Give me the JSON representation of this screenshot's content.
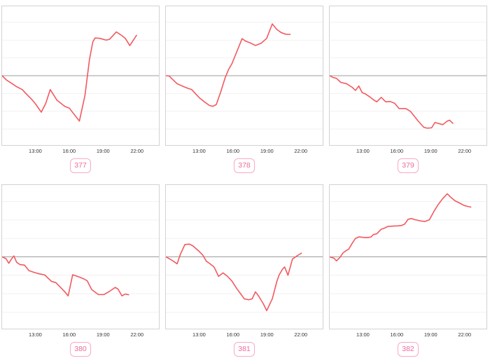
{
  "theme": {
    "line_color": "#f2595f",
    "baseline_color": "#9c9c9c",
    "grid_color": "#f1f1f1",
    "panel_border_color": "#d2d2d2",
    "tick_color": "#333333",
    "badge_text_color": "#ef6a9e",
    "badge_border_color": "#f8aac7",
    "background": "#ffffff"
  },
  "axis": {
    "x_domain_hours": [
      10,
      24
    ],
    "y_domain_units": [
      -3.9,
      3.9
    ],
    "gridline_units": [
      -3,
      -2,
      -1,
      1,
      2,
      3
    ],
    "baseline_unit": 0,
    "grid": "on",
    "legend": "none",
    "ticks": [
      {
        "hour": 13,
        "label": "13:00"
      },
      {
        "hour": 16,
        "label": "16:00"
      },
      {
        "hour": 19,
        "label": "19:00"
      },
      {
        "hour": 22,
        "label": "22:00"
      }
    ]
  },
  "chart_data": [
    {
      "type": "line",
      "label": "377",
      "title": "",
      "xlabel": "",
      "ylabel": "",
      "x_unit": "hour of day",
      "y_unit": "change relative to baseline (unlabeled axis); 1 unit = one gridline spacing",
      "series": [
        {
          "name": "series-377",
          "points": [
            [
              10.0,
              0
            ],
            [
              10.4,
              -0.25
            ],
            [
              10.9,
              -0.45
            ],
            [
              11.3,
              -0.62
            ],
            [
              11.8,
              -0.78
            ],
            [
              12.2,
              -1.05
            ],
            [
              12.6,
              -1.3
            ],
            [
              13.0,
              -1.6
            ],
            [
              13.5,
              -2.05
            ],
            [
              13.9,
              -1.55
            ],
            [
              14.3,
              -0.78
            ],
            [
              14.9,
              -1.38
            ],
            [
              15.6,
              -1.73
            ],
            [
              16.0,
              -1.82
            ],
            [
              16.4,
              -2.15
            ],
            [
              16.9,
              -2.55
            ],
            [
              17.4,
              -1.1
            ],
            [
              17.8,
              0.9
            ],
            [
              18.1,
              1.9
            ],
            [
              18.3,
              2.12
            ],
            [
              18.7,
              2.1
            ],
            [
              19.3,
              2.0
            ],
            [
              19.6,
              2.05
            ],
            [
              20.2,
              2.46
            ],
            [
              20.7,
              2.25
            ],
            [
              21.0,
              2.1
            ],
            [
              21.4,
              1.69
            ],
            [
              22.0,
              2.27
            ]
          ]
        }
      ]
    },
    {
      "type": "line",
      "label": "378",
      "title": "",
      "xlabel": "",
      "ylabel": "",
      "x_unit": "hour of day",
      "y_unit": "change relative to baseline (unlabeled axis); 1 unit = one gridline spacing",
      "series": [
        {
          "name": "series-378",
          "points": [
            [
              10.0,
              0
            ],
            [
              10.3,
              -0.02
            ],
            [
              10.5,
              -0.15
            ],
            [
              11.0,
              -0.45
            ],
            [
              11.6,
              -0.62
            ],
            [
              12.0,
              -0.72
            ],
            [
              12.3,
              -0.78
            ],
            [
              12.7,
              -1.05
            ],
            [
              13.0,
              -1.25
            ],
            [
              13.5,
              -1.5
            ],
            [
              13.9,
              -1.68
            ],
            [
              14.2,
              -1.72
            ],
            [
              14.5,
              -1.62
            ],
            [
              14.9,
              -0.9
            ],
            [
              15.3,
              -0.1
            ],
            [
              15.6,
              0.35
            ],
            [
              15.9,
              0.68
            ],
            [
              16.3,
              1.3
            ],
            [
              16.8,
              2.08
            ],
            [
              17.1,
              1.95
            ],
            [
              17.5,
              1.85
            ],
            [
              18.0,
              1.7
            ],
            [
              18.5,
              1.82
            ],
            [
              19.0,
              2.1
            ],
            [
              19.5,
              2.91
            ],
            [
              19.9,
              2.6
            ],
            [
              20.3,
              2.42
            ],
            [
              20.7,
              2.33
            ],
            [
              21.1,
              2.32
            ]
          ]
        }
      ]
    },
    {
      "type": "line",
      "label": "379",
      "title": "",
      "xlabel": "",
      "ylabel": "",
      "x_unit": "hour of day",
      "y_unit": "change relative to baseline (unlabeled axis); 1 unit = one gridline spacing",
      "series": [
        {
          "name": "series-379",
          "points": [
            [
              10.0,
              0
            ],
            [
              10.3,
              -0.1
            ],
            [
              10.6,
              -0.15
            ],
            [
              11.0,
              -0.38
            ],
            [
              11.5,
              -0.45
            ],
            [
              12.0,
              -0.65
            ],
            [
              12.3,
              -0.83
            ],
            [
              12.6,
              -0.58
            ],
            [
              12.9,
              -0.95
            ],
            [
              13.2,
              -1.03
            ],
            [
              13.6,
              -1.2
            ],
            [
              13.9,
              -1.35
            ],
            [
              14.2,
              -1.47
            ],
            [
              14.6,
              -1.22
            ],
            [
              15.0,
              -1.47
            ],
            [
              15.4,
              -1.45
            ],
            [
              15.8,
              -1.55
            ],
            [
              16.2,
              -1.85
            ],
            [
              16.8,
              -1.85
            ],
            [
              17.2,
              -2.0
            ],
            [
              17.9,
              -2.55
            ],
            [
              18.4,
              -2.9
            ],
            [
              18.7,
              -2.95
            ],
            [
              19.1,
              -2.93
            ],
            [
              19.4,
              -2.63
            ],
            [
              19.8,
              -2.7
            ],
            [
              20.1,
              -2.75
            ],
            [
              20.5,
              -2.55
            ],
            [
              20.7,
              -2.5
            ],
            [
              21.0,
              -2.68
            ]
          ]
        }
      ]
    },
    {
      "type": "line",
      "label": "380",
      "title": "",
      "xlabel": "",
      "ylabel": "",
      "x_unit": "hour of day",
      "y_unit": "change relative to baseline (unlabeled axis); 1 unit = one gridline spacing",
      "series": [
        {
          "name": "series-380",
          "points": [
            [
              10.0,
              0
            ],
            [
              10.35,
              -0.1
            ],
            [
              10.6,
              -0.35
            ],
            [
              10.8,
              -0.15
            ],
            [
              11.05,
              0.05
            ],
            [
              11.3,
              -0.3
            ],
            [
              11.6,
              -0.42
            ],
            [
              12.0,
              -0.45
            ],
            [
              12.4,
              -0.75
            ],
            [
              12.9,
              -0.85
            ],
            [
              13.3,
              -0.92
            ],
            [
              13.8,
              -0.98
            ],
            [
              14.4,
              -1.33
            ],
            [
              14.8,
              -1.4
            ],
            [
              15.2,
              -1.65
            ],
            [
              15.6,
              -1.9
            ],
            [
              15.9,
              -2.12
            ],
            [
              16.3,
              -0.97
            ],
            [
              16.9,
              -1.1
            ],
            [
              17.3,
              -1.2
            ],
            [
              17.6,
              -1.3
            ],
            [
              18.0,
              -1.78
            ],
            [
              18.6,
              -2.05
            ],
            [
              19.1,
              -2.05
            ],
            [
              19.6,
              -1.87
            ],
            [
              20.1,
              -1.66
            ],
            [
              20.35,
              -1.75
            ],
            [
              20.7,
              -2.12
            ],
            [
              21.0,
              -2.02
            ],
            [
              21.3,
              -2.06
            ]
          ]
        }
      ]
    },
    {
      "type": "line",
      "label": "381",
      "title": "",
      "xlabel": "",
      "ylabel": "",
      "x_unit": "hour of day",
      "y_unit": "change relative to baseline (unlabeled axis); 1 unit = one gridline spacing",
      "series": [
        {
          "name": "series-381",
          "points": [
            [
              10.0,
              0
            ],
            [
              10.3,
              -0.1
            ],
            [
              10.7,
              -0.25
            ],
            [
              11.0,
              -0.38
            ],
            [
              11.3,
              0.15
            ],
            [
              11.7,
              0.67
            ],
            [
              12.1,
              0.69
            ],
            [
              12.4,
              0.6
            ],
            [
              13.0,
              0.28
            ],
            [
              13.3,
              0.09
            ],
            [
              13.6,
              -0.23
            ],
            [
              13.9,
              -0.36
            ],
            [
              14.3,
              -0.55
            ],
            [
              14.7,
              -1.06
            ],
            [
              15.1,
              -0.87
            ],
            [
              15.5,
              -1.06
            ],
            [
              15.9,
              -1.32
            ],
            [
              16.3,
              -1.7
            ],
            [
              16.7,
              -2.03
            ],
            [
              17.0,
              -2.28
            ],
            [
              17.4,
              -2.33
            ],
            [
              17.7,
              -2.28
            ],
            [
              18.0,
              -1.9
            ],
            [
              18.3,
              -2.15
            ],
            [
              18.7,
              -2.55
            ],
            [
              19.0,
              -2.92
            ],
            [
              19.5,
              -2.28
            ],
            [
              19.9,
              -1.35
            ],
            [
              20.1,
              -1.0
            ],
            [
              20.4,
              -0.68
            ],
            [
              20.6,
              -0.55
            ],
            [
              20.9,
              -1.0
            ],
            [
              21.3,
              -0.12
            ],
            [
              21.7,
              0.05
            ],
            [
              22.1,
              0.2
            ]
          ]
        }
      ]
    },
    {
      "type": "line",
      "label": "382",
      "title": "",
      "xlabel": "",
      "ylabel": "",
      "x_unit": "hour of day",
      "y_unit": "change relative to baseline (unlabeled axis); 1 unit = one gridline spacing",
      "series": [
        {
          "name": "series-382",
          "points": [
            [
              10.0,
              0
            ],
            [
              10.4,
              -0.08
            ],
            [
              10.6,
              -0.22
            ],
            [
              10.9,
              -0.04
            ],
            [
              11.2,
              0.22
            ],
            [
              11.5,
              0.35
            ],
            [
              11.7,
              0.42
            ],
            [
              12.0,
              0.73
            ],
            [
              12.3,
              1.0
            ],
            [
              12.6,
              1.08
            ],
            [
              13.0,
              1.06
            ],
            [
              13.4,
              1.05
            ],
            [
              13.7,
              1.08
            ],
            [
              13.9,
              1.21
            ],
            [
              14.2,
              1.25
            ],
            [
              14.6,
              1.5
            ],
            [
              14.9,
              1.56
            ],
            [
              15.2,
              1.65
            ],
            [
              15.7,
              1.67
            ],
            [
              16.1,
              1.68
            ],
            [
              16.4,
              1.7
            ],
            [
              16.7,
              1.78
            ],
            [
              17.0,
              2.04
            ],
            [
              17.3,
              2.08
            ],
            [
              17.6,
              2.02
            ],
            [
              18.1,
              1.95
            ],
            [
              18.5,
              1.92
            ],
            [
              18.9,
              2.01
            ],
            [
              19.3,
              2.46
            ],
            [
              19.7,
              2.85
            ],
            [
              20.1,
              3.17
            ],
            [
              20.5,
              3.42
            ],
            [
              20.8,
              3.24
            ],
            [
              21.2,
              3.04
            ],
            [
              21.6,
              2.92
            ],
            [
              22.0,
              2.79
            ],
            [
              22.3,
              2.74
            ],
            [
              22.6,
              2.7
            ]
          ]
        }
      ]
    }
  ]
}
